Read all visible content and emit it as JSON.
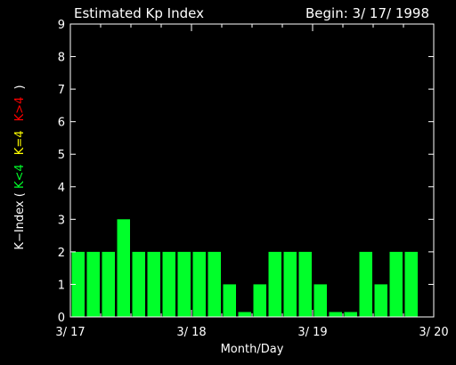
{
  "chart_data": {
    "type": "bar",
    "title": "Estimated Kp Index",
    "subtitle": "Begin: 3/ 17/ 1998",
    "xlabel": "Month/Day",
    "ylabel": {
      "prefix": "K−Index (",
      "green": "K<4",
      "yellow": "K=4",
      "red": "K>4",
      "suffix": ")"
    },
    "ylim": [
      0,
      9
    ],
    "yticks": [
      "0",
      "1",
      "2",
      "3",
      "4",
      "5",
      "6",
      "7",
      "8",
      "9"
    ],
    "xlim": [
      0,
      3
    ],
    "xticks": [
      {
        "pos": 0,
        "label": "3/ 17"
      },
      {
        "pos": 1,
        "label": "3/ 18"
      },
      {
        "pos": 2,
        "label": "3/ 19"
      },
      {
        "pos": 3,
        "label": "3/ 20"
      }
    ],
    "bar_interval_hours": 3,
    "values": [
      2,
      2,
      2,
      3,
      2,
      2,
      2,
      2,
      2,
      2,
      1,
      0.15,
      1,
      2,
      2,
      2,
      1,
      0.15,
      0.15,
      2,
      1,
      2,
      2
    ],
    "colors": {
      "background": "#000000",
      "axes": "#ffffff",
      "low": "#00ff2a",
      "moderate": "#ffff00",
      "high": "#ff0000"
    }
  }
}
